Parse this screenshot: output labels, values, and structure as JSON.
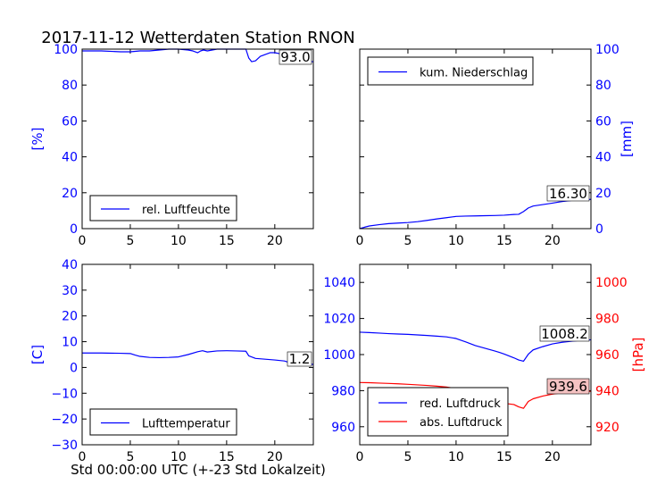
{
  "chart_data": [
    {
      "id": "humidity",
      "type": "line",
      "title": "2017-11-12 Wetterdaten Station RNON",
      "xlim": [
        0,
        24
      ],
      "xticks": [
        0,
        5,
        10,
        15,
        20
      ],
      "ylim": [
        0,
        100
      ],
      "yticks": [
        0,
        20,
        40,
        60,
        80,
        100
      ],
      "ylabel": "[%]",
      "series": [
        {
          "name": "rel. Luftfeuchte",
          "color": "#0000ff",
          "x": [
            0,
            2,
            4,
            5,
            6,
            7,
            8,
            9,
            10,
            11,
            11.5,
            12,
            12.3,
            12.6,
            13,
            14,
            15,
            16,
            16.5,
            17,
            17.3,
            17.6,
            18,
            18.5,
            19,
            19.5,
            20,
            20.5,
            21,
            21.5,
            22,
            22.5,
            23,
            23.5,
            24
          ],
          "y": [
            99,
            99,
            98.5,
            98.5,
            99,
            99,
            99.5,
            100,
            100,
            99.5,
            99,
            98,
            99,
            99.5,
            99,
            100,
            100,
            100,
            100,
            100,
            95,
            93,
            93.5,
            96,
            97,
            98,
            98,
            97.5,
            97,
            96,
            95,
            94,
            93.5,
            93,
            93
          ]
        }
      ],
      "annotation": "93.0",
      "legend": "bottom-left"
    },
    {
      "id": "precip",
      "type": "line",
      "xlim": [
        0,
        24
      ],
      "xticks": [
        0,
        5,
        10,
        15,
        20
      ],
      "ylim": [
        0,
        100
      ],
      "yticks": [
        0,
        20,
        40,
        60,
        80,
        100
      ],
      "ylabel": "[mm]",
      "series": [
        {
          "name": "kum. Niederschlag",
          "color": "#0000ff",
          "x": [
            0,
            0.5,
            1,
            2,
            3,
            4,
            5,
            6,
            7,
            8,
            9,
            10,
            11,
            12,
            13,
            14,
            15,
            16,
            16.5,
            17,
            17.5,
            18,
            19,
            20,
            21,
            22,
            23,
            24
          ],
          "y": [
            0,
            0.8,
            1.5,
            2.2,
            2.8,
            3.1,
            3.4,
            3.9,
            4.6,
            5.4,
            6.1,
            6.8,
            7.0,
            7.1,
            7.2,
            7.3,
            7.5,
            7.9,
            8.0,
            9.5,
            11.5,
            12.6,
            13.4,
            14.2,
            15.1,
            15.7,
            16.1,
            16.3
          ]
        }
      ],
      "annotation": "16.30",
      "legend": "top-left"
    },
    {
      "id": "temperature",
      "type": "line",
      "xlim": [
        0,
        24
      ],
      "xticks": [
        0,
        5,
        10,
        15,
        20
      ],
      "ylim": [
        -30,
        40
      ],
      "yticks": [
        -30,
        -20,
        -10,
        0,
        10,
        20,
        30,
        40
      ],
      "ylabel": "[C]",
      "xlabel": "Std 00:00:00 UTC (+-23 Std Lokalzeit)",
      "series": [
        {
          "name": "Lufttemperatur",
          "color": "#0000ff",
          "x": [
            0,
            2,
            4,
            5,
            5.5,
            6,
            7,
            8,
            9,
            10,
            11,
            12,
            12.5,
            13,
            14,
            15,
            16,
            17,
            17.3,
            18,
            19,
            20,
            21,
            21.5,
            22,
            23,
            24
          ],
          "y": [
            5.6,
            5.6,
            5.5,
            5.4,
            4.8,
            4.3,
            3.9,
            3.8,
            3.9,
            4.1,
            5.0,
            6.1,
            6.5,
            6.0,
            6.4,
            6.5,
            6.4,
            6.3,
            4.5,
            3.5,
            3.2,
            2.9,
            2.5,
            1.9,
            1.5,
            1.3,
            1.2
          ]
        }
      ],
      "annotation": "1.2",
      "legend": "bottom-left"
    },
    {
      "id": "pressure",
      "type": "line",
      "xlim": [
        0,
        24
      ],
      "xticks": [
        0,
        5,
        10,
        15,
        20
      ],
      "ylim": [
        950,
        1050
      ],
      "yticks": [
        960,
        980,
        1000,
        1020,
        1040
      ],
      "ylim2": [
        910,
        1010
      ],
      "yticks2": [
        920,
        940,
        960,
        980,
        1000
      ],
      "ylabel2": "[hPa]",
      "series": [
        {
          "name": "red. Luftdruck",
          "color": "#0000ff",
          "axis": "left",
          "x": [
            0,
            1,
            2,
            3,
            4,
            5,
            6,
            7,
            8,
            9,
            10,
            11,
            12,
            13,
            14,
            14.5,
            15,
            16,
            16.5,
            17,
            17.5,
            18,
            19,
            20,
            21,
            22,
            23,
            24
          ],
          "y": [
            1012.4,
            1012.2,
            1011.9,
            1011.6,
            1011.4,
            1011.2,
            1010.9,
            1010.6,
            1010.2,
            1009.8,
            1008.9,
            1007.0,
            1005.0,
            1003.5,
            1002.0,
            1001.2,
            1000.3,
            998.2,
            997.0,
            996.3,
            1000.2,
            1002.6,
            1004.4,
            1005.9,
            1006.8,
            1007.4,
            1007.9,
            1008.2
          ]
        },
        {
          "name": "abs. Luftdruck",
          "color": "#ff0000",
          "axis": "right",
          "x": [
            0,
            1,
            2,
            3,
            4,
            5,
            6,
            7,
            8,
            9,
            10,
            11,
            12,
            13,
            14,
            15,
            16,
            16.5,
            17,
            17.5,
            18,
            19,
            20,
            21,
            22,
            23,
            24
          ],
          "y": [
            944.5,
            944.4,
            944.2,
            944.0,
            943.8,
            943.5,
            943.2,
            942.9,
            942.5,
            942.0,
            941.2,
            939.5,
            937.8,
            936.5,
            935.0,
            933.0,
            932.3,
            931.0,
            930.2,
            934.0,
            935.5,
            937.0,
            938.1,
            938.8,
            939.2,
            939.4,
            939.6
          ]
        }
      ],
      "annotations": [
        {
          "text": "1008.2",
          "series": 0
        },
        {
          "text": "939.6",
          "series": 1
        }
      ],
      "legend": "bottom-left"
    }
  ]
}
